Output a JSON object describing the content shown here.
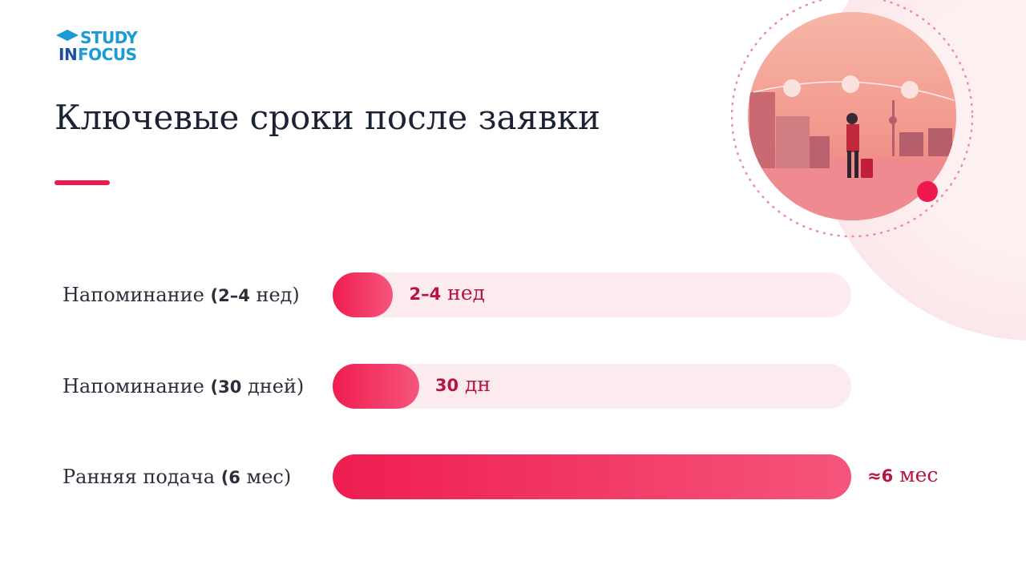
{
  "logo": {
    "line1": "STUDY",
    "line2": "IN",
    "line3": "FOCUS"
  },
  "chart_data": {
    "type": "bar",
    "orientation": "horizontal",
    "title": "Ключевые сроки после заявки",
    "categories": [
      "Напоминание (2–4 нед)",
      "Напоминание (30 дней)",
      "Ранняя подача (6 мес)"
    ],
    "values": [
      0.7,
      1,
      6
    ],
    "value_labels": [
      "2–4 нед",
      "30 дн",
      "≈6 мес"
    ],
    "xlim": [
      0,
      6
    ],
    "color": "#ef1d50"
  }
}
